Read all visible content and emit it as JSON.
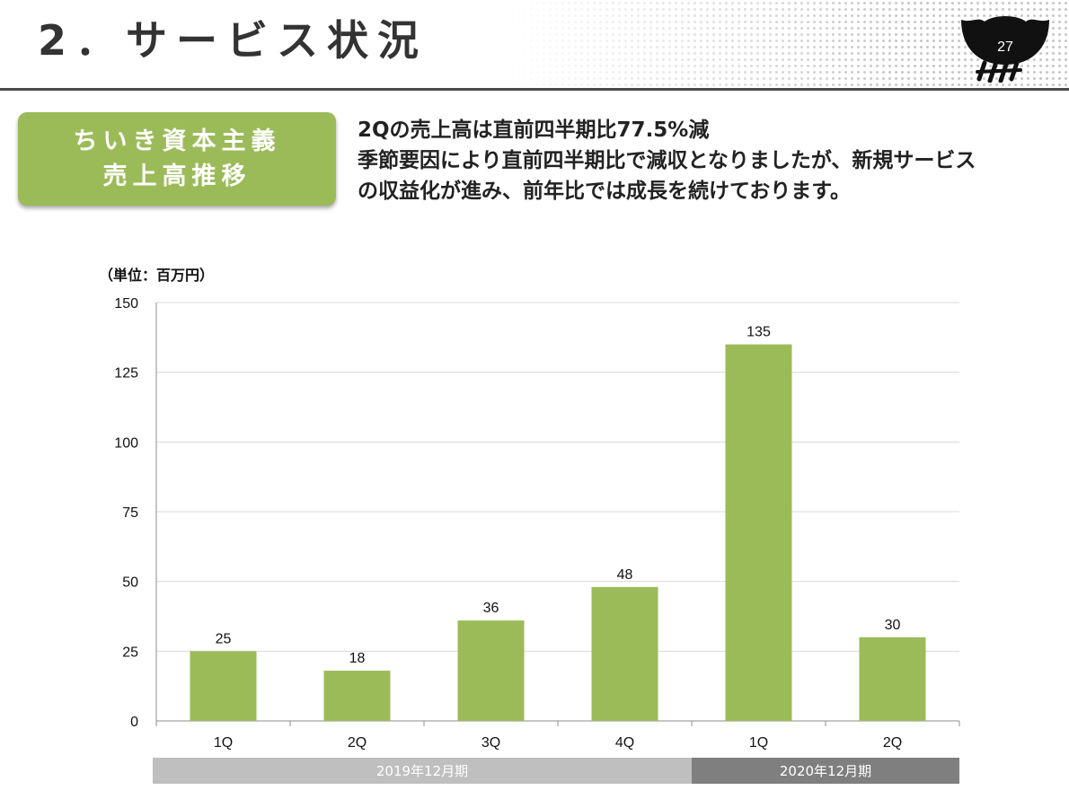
{
  "header": {
    "title": "2．サービス状況",
    "page_number": "27"
  },
  "section": {
    "badge_lines": [
      "ちいき資本主義",
      "売上高推移"
    ]
  },
  "summary": {
    "lines": [
      "2Qの売上高は直前四半期比77.5%減",
      "季節要因により直前四半期比で減収となりましたが、新規サービス",
      "の収益化が進み、前年比では成長を続けております。"
    ]
  },
  "colors": {
    "accent": "#9bbb59",
    "bar": "#9bbb59",
    "period_2019": "#bfbfbf",
    "period_2020": "#7f7f7f"
  },
  "chart_data": {
    "type": "bar",
    "unit_label": "（単位：百万円）",
    "categories": [
      "1Q",
      "2Q",
      "3Q",
      "4Q",
      "1Q",
      "2Q"
    ],
    "values": [
      25,
      18,
      36,
      48,
      135,
      30
    ],
    "data_labels": [
      "25",
      "18",
      "36",
      "48",
      "135",
      "30"
    ],
    "ylim": [
      0,
      150
    ],
    "yticks": [
      0,
      25,
      50,
      75,
      100,
      125,
      150
    ],
    "grid": true,
    "legend": "none",
    "period_groups": [
      {
        "label": "2019年12月期",
        "categories": 4
      },
      {
        "label": "2020年12月期",
        "categories": 2
      }
    ]
  }
}
